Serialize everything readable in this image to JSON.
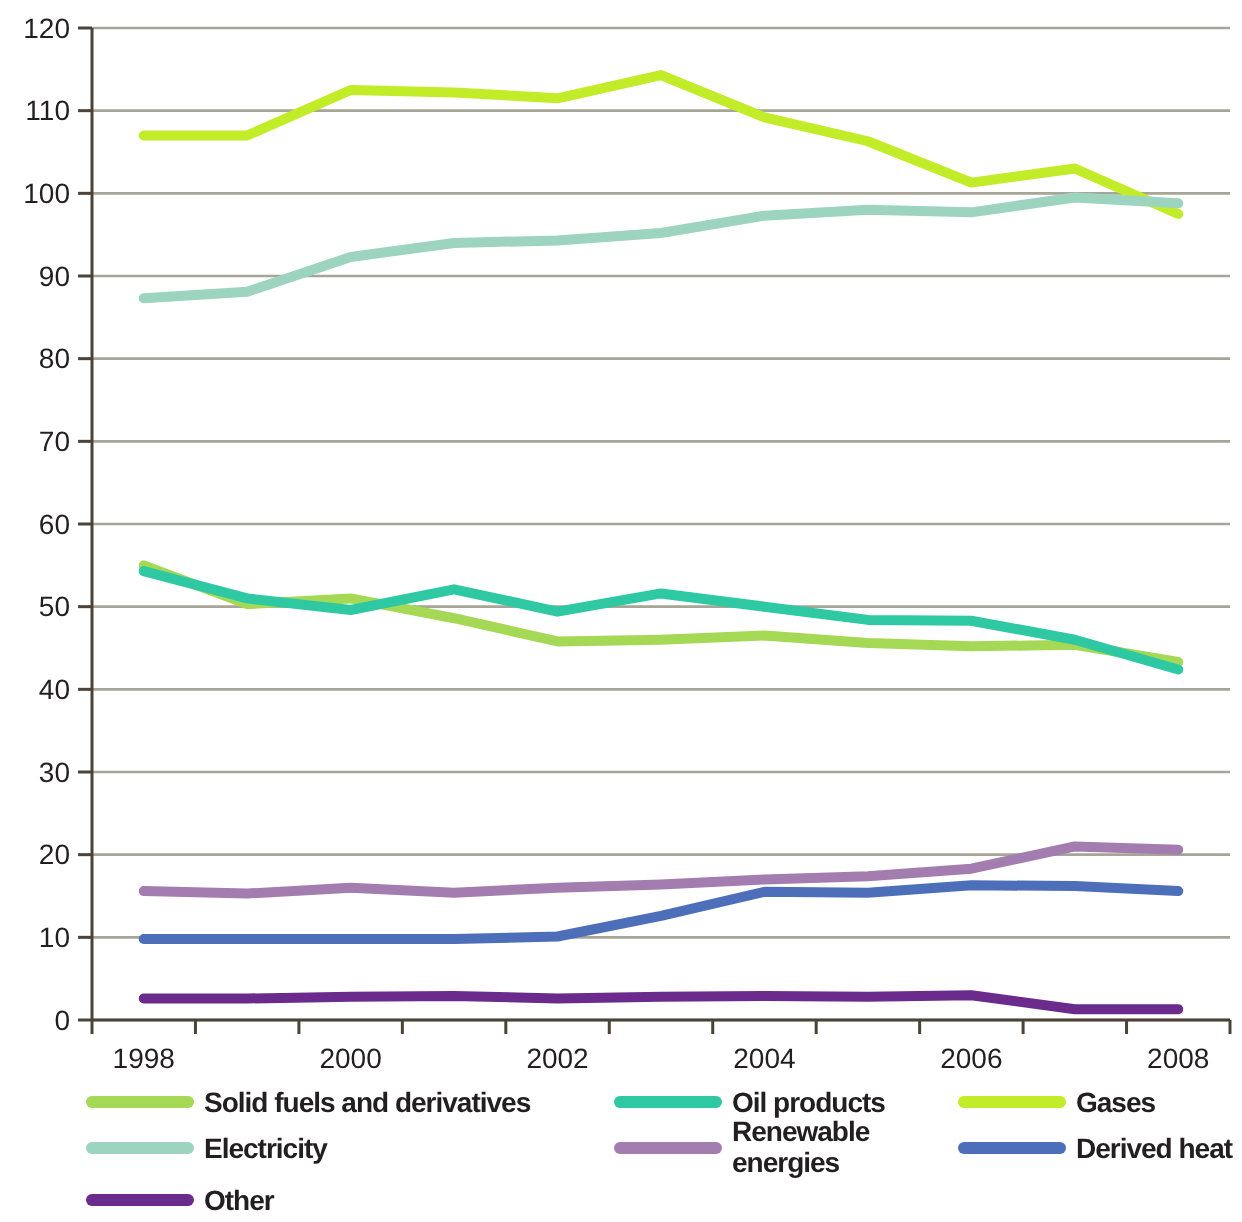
{
  "chart_data": {
    "type": "line",
    "categories": [
      "1998",
      null,
      "2000",
      null,
      "2002",
      null,
      "2004",
      null,
      "2006",
      null,
      "2008"
    ],
    "ylim": [
      0,
      120
    ],
    "yticks": [
      0,
      10,
      20,
      30,
      40,
      50,
      60,
      70,
      80,
      90,
      100,
      110,
      120
    ],
    "grid": "y",
    "legend": "bottom",
    "marker": "none",
    "line_style": "solid",
    "series": [
      {
        "name": "Solid fuels and derivatives",
        "color": "#a5d955",
        "values": [
          55,
          50.3,
          51,
          48.6,
          45.8,
          46,
          46.5,
          45.6,
          45.2,
          45.4,
          43.3
        ]
      },
      {
        "name": "Oil products",
        "color": "#2ec9a3",
        "values": [
          54.3,
          51,
          49.6,
          52.1,
          49.4,
          51.6,
          50,
          48.4,
          48.3,
          46,
          42.4
        ]
      },
      {
        "name": "Gases",
        "color": "#c1ec27",
        "values": [
          107,
          107,
          112.5,
          112.2,
          111.5,
          114.3,
          109.2,
          106.3,
          101.3,
          103,
          97.5
        ]
      },
      {
        "name": "Electricity",
        "color": "#9dd4bf",
        "values": [
          87.3,
          88.1,
          92.3,
          94,
          94.3,
          95.2,
          97.3,
          98,
          97.7,
          99.5,
          98.8
        ]
      },
      {
        "name": "Renewable energies",
        "color": "#a37cb0",
        "values": [
          15.6,
          15.3,
          16,
          15.4,
          16,
          16.4,
          17,
          17.4,
          18.3,
          21,
          20.6
        ]
      },
      {
        "name": "Derived heat",
        "color": "#4d6eb8",
        "values": [
          9.8,
          9.8,
          9.8,
          9.8,
          10.1,
          12.6,
          15.5,
          15.4,
          16.3,
          16.2,
          15.6
        ]
      },
      {
        "name": "Other",
        "color": "#6a2b8c",
        "values": [
          2.6,
          2.6,
          2.8,
          2.9,
          2.6,
          2.8,
          2.9,
          2.8,
          3,
          1.3,
          1.3
        ]
      }
    ]
  }
}
